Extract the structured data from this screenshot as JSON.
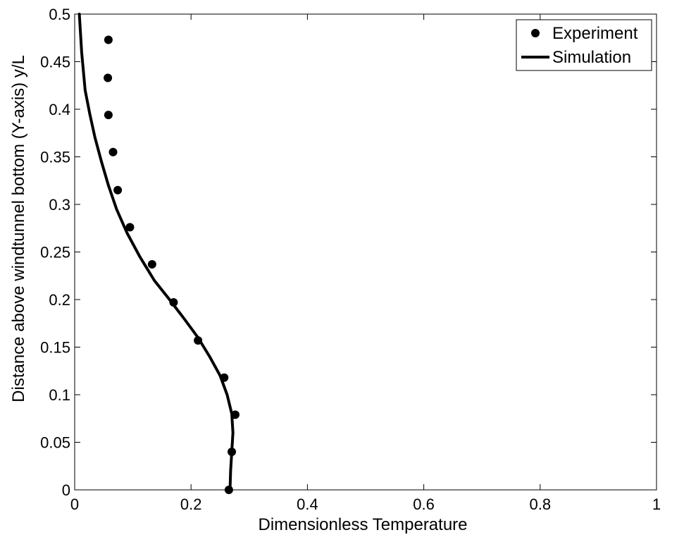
{
  "chart_data": {
    "type": "scatter",
    "xlabel": "Dimensionless Temperature",
    "ylabel": "Distance above windtunnel bottom (Y-axis) y/L",
    "xlim": [
      0,
      1
    ],
    "ylim": [
      0,
      0.5
    ],
    "x_ticks": [
      "0",
      "0.2",
      "0.4",
      "0.6",
      "0.8",
      "1"
    ],
    "y_ticks": [
      "0",
      "0.05",
      "0.1",
      "0.15",
      "0.2",
      "0.25",
      "0.3",
      "0.35",
      "0.4",
      "0.45",
      "0.5"
    ],
    "grid": false,
    "legend_position": "top-right",
    "series": [
      {
        "name": "Experiment",
        "type": "scatter",
        "marker": "filled-circle",
        "color": "#000000",
        "x": [
          0.265,
          0.27,
          0.276,
          0.257,
          0.212,
          0.17,
          0.133,
          0.095,
          0.074,
          0.066,
          0.058,
          0.057,
          0.058
        ],
        "y": [
          0.0,
          0.04,
          0.079,
          0.118,
          0.157,
          0.197,
          0.237,
          0.276,
          0.315,
          0.355,
          0.394,
          0.433,
          0.473
        ]
      },
      {
        "name": "Simulation",
        "type": "line",
        "color": "#000000",
        "x": [
          0.267,
          0.268,
          0.27,
          0.272,
          0.27,
          0.262,
          0.25,
          0.232,
          0.212,
          0.188,
          0.163,
          0.137,
          0.112,
          0.09,
          0.072,
          0.058,
          0.046,
          0.035,
          0.026,
          0.018,
          0.012,
          0.008
        ],
        "y": [
          0.0,
          0.02,
          0.04,
          0.06,
          0.08,
          0.1,
          0.12,
          0.14,
          0.16,
          0.18,
          0.2,
          0.22,
          0.245,
          0.27,
          0.295,
          0.32,
          0.345,
          0.37,
          0.395,
          0.42,
          0.46,
          0.5
        ]
      }
    ]
  }
}
